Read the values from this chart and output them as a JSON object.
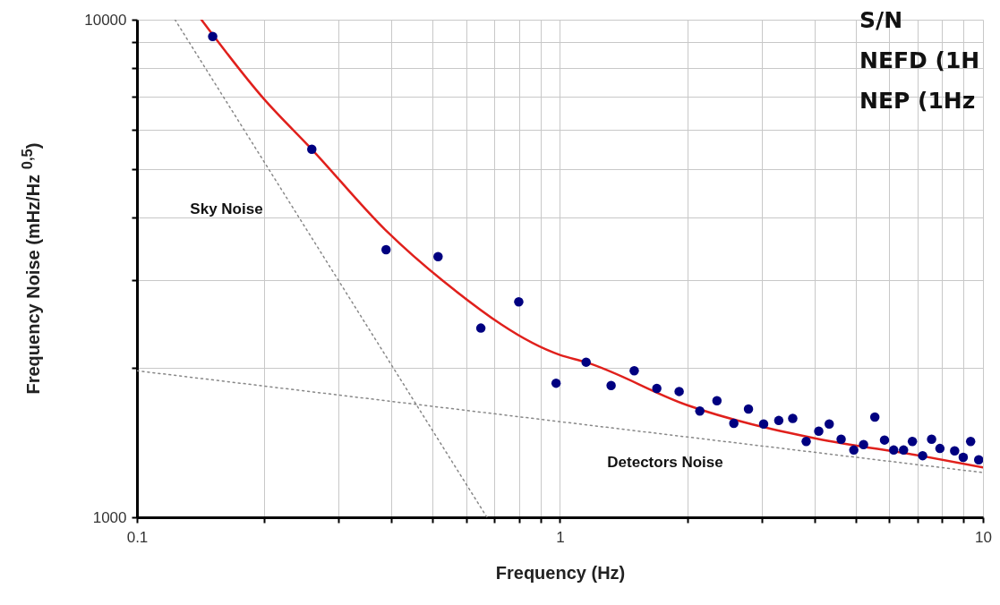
{
  "chart_data": {
    "type": "scatter",
    "xlabel": "Frequency (Hz)",
    "ylabel": "Frequency Noise (mHz/Hz $^{0,5}$)",
    "log": "xy",
    "xlim": [
      0.1,
      10
    ],
    "ylim": [
      1000,
      10000
    ],
    "xticks": [
      0.1,
      {
        "value": 0.2,
        "label": null
      },
      {
        "value": 0.3,
        "label": null
      },
      {
        "value": 0.4,
        "label": null
      },
      {
        "value": 0.5,
        "label": null
      },
      {
        "value": 0.6,
        "label": null
      },
      {
        "value": 0.7,
        "label": null
      },
      {
        "value": 0.8,
        "label": null
      },
      {
        "value": 0.9,
        "label": null
      },
      1,
      {
        "value": 2,
        "label": null
      },
      {
        "value": 3,
        "label": null
      },
      {
        "value": 4,
        "label": null
      },
      {
        "value": 5,
        "label": null
      },
      {
        "value": 6,
        "label": null
      },
      {
        "value": 7,
        "label": null
      },
      {
        "value": 8,
        "label": null
      },
      {
        "value": 9,
        "label": null
      },
      10
    ],
    "yticks": [
      1000,
      {
        "value": 2000,
        "label": null
      },
      {
        "value": 3000,
        "label": null
      },
      {
        "value": 4000,
        "label": null
      },
      {
        "value": 5000,
        "label": null
      },
      {
        "value": 6000,
        "label": null
      },
      {
        "value": 7000,
        "label": null
      },
      {
        "value": 8000,
        "label": null
      },
      {
        "value": 9000,
        "label": null
      },
      10000
    ],
    "grid": true,
    "annotations": [
      "Sky Noise",
      "Detectors Noise",
      "S/N",
      "NEFD (1H",
      "NEP (1Hz"
    ],
    "series": [
      {
        "type": "line",
        "color": "#888888",
        "line_style": "dotted",
        "x": [
          0.123,
          0.672
        ],
        "values": [
          10000,
          1000
        ]
      },
      {
        "type": "line",
        "color": "#888888",
        "line_style": "dotted",
        "x": [
          0.1,
          10
        ],
        "values": [
          1970,
          1230
        ]
      },
      {
        "type": "line",
        "color": "#e0201c",
        "line_style": "solid",
        "x": [
          0.142,
          0.199,
          0.259,
          0.389,
          0.528,
          1.0,
          1.15,
          2.0,
          4.03,
          7.09,
          10
        ],
        "values": [
          10000,
          6950,
          5490,
          3760,
          2990,
          2120,
          2050,
          1680,
          1440,
          1330,
          1260
        ]
      },
      {
        "color": "#000080",
        "marker": "circle",
        "x": [
          0.151,
          0.259,
          0.388,
          0.515,
          0.65,
          0.799,
          0.979,
          1.153,
          1.321,
          1.498,
          1.694,
          1.913,
          2.141,
          2.35,
          2.576,
          2.79,
          3.03,
          3.29,
          3.55,
          3.82,
          4.09,
          4.33,
          4.62,
          4.95,
          5.22,
          5.55,
          5.85,
          6.15,
          6.49,
          6.81,
          7.2,
          7.56,
          7.91,
          8.57,
          8.98,
          9.35,
          9.77
        ],
        "values": [
          9250,
          5490,
          3450,
          3340,
          2400,
          2710,
          1860,
          2050,
          1840,
          1970,
          1815,
          1790,
          1635,
          1715,
          1545,
          1650,
          1540,
          1565,
          1580,
          1420,
          1490,
          1540,
          1435,
          1365,
          1400,
          1590,
          1430,
          1365,
          1365,
          1420,
          1330,
          1435,
          1375,
          1360,
          1320,
          1420,
          1305
        ]
      }
    ]
  }
}
